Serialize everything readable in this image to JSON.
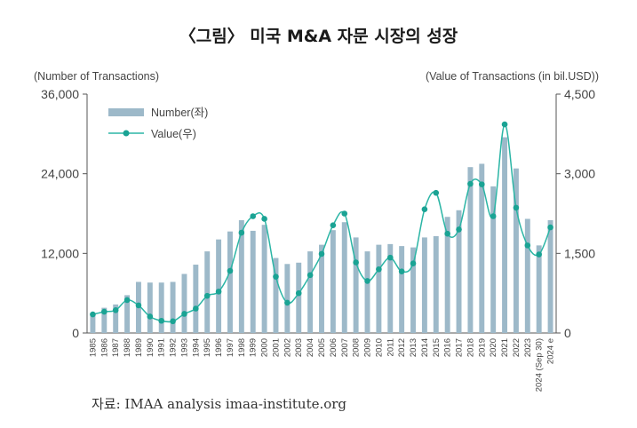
{
  "title": "〈그림〉 미국 M&A 자문 시장의 성장",
  "source": "자료: IMAA analysis imaa-institute.org",
  "colors": {
    "bar": "#9db9c9",
    "line": "#2bb5a5",
    "marker": "#1aa394",
    "axis": "#555555"
  },
  "chart_data": {
    "type": "bar+line",
    "title": "〈그림〉 미국 M&A 자문 시장의 성장",
    "left_axis_label": "(Number of Transactions)",
    "right_axis_label": "(Value of Transactions (in bil.USD))",
    "left_ylim": [
      0,
      36000
    ],
    "right_ylim": [
      0,
      4500
    ],
    "left_ticks": [
      0,
      12000,
      24000,
      36000
    ],
    "left_tick_labels": [
      "0",
      "12,000",
      "24,000",
      "36,000"
    ],
    "right_ticks": [
      0,
      1500,
      3000,
      4500
    ],
    "right_tick_labels": [
      "0",
      "1,500",
      "3,000",
      "4,500"
    ],
    "categories": [
      "1985",
      "1986",
      "1987",
      "1988",
      "1989",
      "1990",
      "1991",
      "1992",
      "1993",
      "1994",
      "1995",
      "1996",
      "1997",
      "1998",
      "1999",
      "2000",
      "2001",
      "2002",
      "2003",
      "2004",
      "2005",
      "2006",
      "2007",
      "2008",
      "2009",
      "2010",
      "2011",
      "2012",
      "2013",
      "2014",
      "2015",
      "2016",
      "2017",
      "2018",
      "2019",
      "2020",
      "2021",
      "2022",
      "2023",
      "2024 (Sep 30)",
      "2024 e"
    ],
    "series": [
      {
        "name": "Number(좌)",
        "axis": "left",
        "kind": "bar",
        "values": [
          2800,
          3800,
          4300,
          5700,
          7700,
          7600,
          7600,
          7700,
          8900,
          10300,
          12300,
          14100,
          15300,
          17000,
          15400,
          16300,
          11300,
          10400,
          10600,
          12300,
          13300,
          15500,
          16700,
          14400,
          12300,
          13300,
          13400,
          13100,
          12900,
          14400,
          14600,
          17500,
          18500,
          25000,
          25500,
          22100,
          29500,
          24800,
          17200,
          13200,
          17000
        ]
      },
      {
        "name": "Value(우)",
        "axis": "right",
        "kind": "line",
        "values": [
          350,
          400,
          430,
          620,
          520,
          310,
          230,
          220,
          360,
          460,
          700,
          780,
          1170,
          1890,
          2200,
          2150,
          1060,
          570,
          750,
          1090,
          1490,
          2030,
          2250,
          1330,
          980,
          1200,
          1420,
          1160,
          1310,
          2330,
          2640,
          1870,
          1950,
          2810,
          2800,
          2200,
          3930,
          2360,
          1650,
          1480,
          1990
        ]
      }
    ],
    "legend": [
      "Number(좌)",
      "Value(우)"
    ],
    "legend_position": "top-left"
  }
}
